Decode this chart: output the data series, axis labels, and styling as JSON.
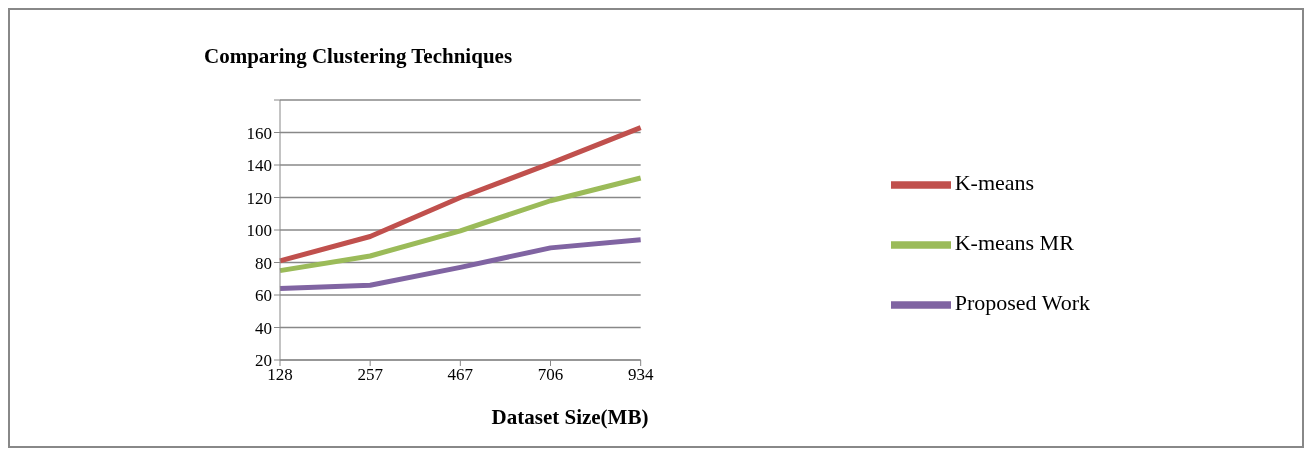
{
  "chart_data": {
    "type": "line",
    "title": "Comparing Clustering Techniques",
    "xlabel": "Dataset Size(MB)",
    "categories": [
      "128",
      "257",
      "467",
      "706",
      "934"
    ],
    "series": [
      {
        "name": "K-means",
        "color": "#c0504d",
        "values": [
          81,
          96,
          120,
          141,
          163
        ]
      },
      {
        "name": "K-means MR",
        "color": "#9bbb59",
        "values": [
          75,
          84,
          99.5,
          118,
          132
        ]
      },
      {
        "name": "Proposed Work",
        "color": "#8064a2",
        "values": [
          64,
          66,
          77,
          89,
          94
        ]
      }
    ],
    "ylim": [
      20,
      180
    ],
    "yticks": [
      20,
      40,
      60,
      80,
      100,
      120,
      140,
      160,
      {
        "value": 180,
        "label": null
      }
    ],
    "grid": "y",
    "legend": "right",
    "marker": "none",
    "line_style": "solid"
  }
}
